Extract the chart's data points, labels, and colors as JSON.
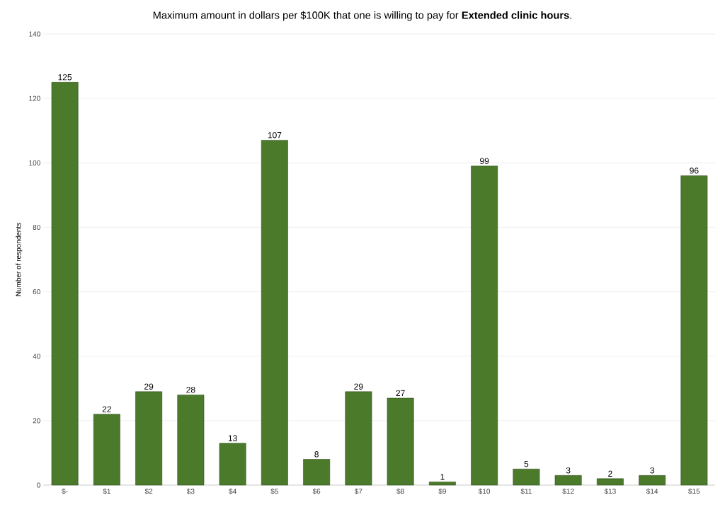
{
  "chart_data": {
    "type": "bar",
    "title": "Maximum amount in dollars per $100K that one is willing to pay for **Extended clinic hours**.",
    "ylabel": "Number of respondents",
    "categories": [
      "$-",
      "$1",
      "$2",
      "$3",
      "$4",
      "$5",
      "$6",
      "$7",
      "$8",
      "$9",
      "$10",
      "$11",
      "$12",
      "$13",
      "$14",
      "$15"
    ],
    "values": [
      125,
      22,
      29,
      28,
      13,
      107,
      8,
      29,
      27,
      1,
      99,
      5,
      3,
      2,
      3,
      96
    ],
    "color": "#4a7a2a",
    "ylim": [
      0,
      140
    ],
    "yticks": [
      0,
      20,
      40,
      60,
      80,
      100,
      120,
      140
    ],
    "grid": "y",
    "data_labels": true
  }
}
